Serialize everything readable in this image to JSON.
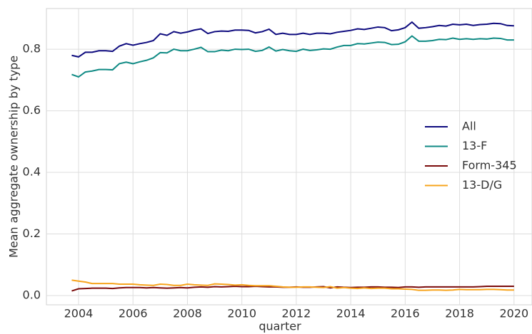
{
  "chart_data": {
    "type": "line",
    "xlabel": "quarter",
    "ylabel": "Mean aggregate ownership by type",
    "x": [
      2003.75,
      2004,
      2004.25,
      2004.5,
      2004.75,
      2005,
      2005.25,
      2005.5,
      2005.75,
      2006,
      2006.25,
      2006.5,
      2006.75,
      2007,
      2007.25,
      2007.5,
      2007.75,
      2008,
      2008.25,
      2008.5,
      2008.75,
      2009,
      2009.25,
      2009.5,
      2009.75,
      2010,
      2010.25,
      2010.5,
      2010.75,
      2011,
      2011.25,
      2011.5,
      2011.75,
      2012,
      2012.25,
      2012.5,
      2012.75,
      2013,
      2013.25,
      2013.5,
      2013.75,
      2014,
      2014.25,
      2014.5,
      2014.75,
      2015,
      2015.25,
      2015.5,
      2015.75,
      2016,
      2016.25,
      2016.5,
      2016.75,
      2017,
      2017.25,
      2017.5,
      2017.75,
      2018,
      2018.25,
      2018.5,
      2018.75,
      2019,
      2019.25,
      2019.5,
      2019.75,
      2020
    ],
    "series": [
      {
        "name": "All",
        "color": "#0d0a7e",
        "values": [
          0.78,
          0.775,
          0.79,
          0.79,
          0.795,
          0.795,
          0.793,
          0.81,
          0.818,
          0.813,
          0.818,
          0.822,
          0.828,
          0.85,
          0.845,
          0.857,
          0.852,
          0.856,
          0.862,
          0.866,
          0.851,
          0.857,
          0.859,
          0.858,
          0.862,
          0.862,
          0.861,
          0.853,
          0.857,
          0.865,
          0.848,
          0.852,
          0.848,
          0.848,
          0.852,
          0.848,
          0.852,
          0.852,
          0.85,
          0.855,
          0.858,
          0.861,
          0.866,
          0.864,
          0.868,
          0.872,
          0.87,
          0.86,
          0.863,
          0.87,
          0.888,
          0.868,
          0.87,
          0.873,
          0.877,
          0.875,
          0.881,
          0.879,
          0.881,
          0.877,
          0.88,
          0.881,
          0.884,
          0.883,
          0.877,
          0.876
        ]
      },
      {
        "name": "13-F",
        "color": "#0f8a84",
        "values": [
          0.718,
          0.71,
          0.726,
          0.729,
          0.734,
          0.734,
          0.733,
          0.753,
          0.758,
          0.753,
          0.759,
          0.764,
          0.772,
          0.789,
          0.788,
          0.8,
          0.795,
          0.795,
          0.8,
          0.806,
          0.792,
          0.792,
          0.797,
          0.795,
          0.8,
          0.799,
          0.8,
          0.793,
          0.796,
          0.807,
          0.794,
          0.799,
          0.795,
          0.793,
          0.8,
          0.796,
          0.798,
          0.801,
          0.8,
          0.807,
          0.812,
          0.812,
          0.818,
          0.817,
          0.82,
          0.823,
          0.822,
          0.815,
          0.816,
          0.824,
          0.843,
          0.826,
          0.826,
          0.828,
          0.832,
          0.831,
          0.836,
          0.832,
          0.834,
          0.832,
          0.834,
          0.833,
          0.836,
          0.835,
          0.83,
          0.83
        ]
      },
      {
        "name": "Form-345",
        "color": "#7b0b0b",
        "values": [
          0.015,
          0.022,
          0.023,
          0.024,
          0.024,
          0.024,
          0.023,
          0.025,
          0.026,
          0.026,
          0.026,
          0.025,
          0.026,
          0.025,
          0.024,
          0.025,
          0.026,
          0.025,
          0.027,
          0.028,
          0.027,
          0.029,
          0.028,
          0.029,
          0.03,
          0.029,
          0.029,
          0.03,
          0.029,
          0.028,
          0.028,
          0.027,
          0.027,
          0.028,
          0.027,
          0.027,
          0.028,
          0.029,
          0.025,
          0.028,
          0.027,
          0.026,
          0.027,
          0.027,
          0.028,
          0.028,
          0.027,
          0.027,
          0.026,
          0.028,
          0.028,
          0.027,
          0.028,
          0.028,
          0.028,
          0.028,
          0.028,
          0.028,
          0.028,
          0.028,
          0.029,
          0.03,
          0.03,
          0.03,
          0.03,
          0.03
        ]
      },
      {
        "name": "13-D/G",
        "color": "#f7a41d",
        "values": [
          0.05,
          0.047,
          0.044,
          0.039,
          0.039,
          0.039,
          0.039,
          0.037,
          0.037,
          0.037,
          0.035,
          0.034,
          0.033,
          0.037,
          0.036,
          0.033,
          0.033,
          0.037,
          0.035,
          0.034,
          0.033,
          0.038,
          0.037,
          0.036,
          0.034,
          0.035,
          0.033,
          0.032,
          0.032,
          0.032,
          0.03,
          0.028,
          0.027,
          0.027,
          0.028,
          0.028,
          0.027,
          0.026,
          0.029,
          0.024,
          0.026,
          0.024,
          0.023,
          0.025,
          0.023,
          0.024,
          0.024,
          0.022,
          0.022,
          0.021,
          0.02,
          0.017,
          0.017,
          0.018,
          0.018,
          0.017,
          0.018,
          0.02,
          0.019,
          0.019,
          0.019,
          0.02,
          0.02,
          0.019,
          0.018,
          0.018
        ]
      }
    ],
    "xlim": [
      2002.82,
      2020.66
    ],
    "xticks": [
      2004,
      2006,
      2008,
      2010,
      2012,
      2014,
      2016,
      2018,
      2020
    ],
    "ylim": [
      -0.03,
      0.932
    ],
    "yticks": [
      {
        "value": 0,
        "label": "0.0"
      },
      0.2,
      0.4,
      0.6,
      0.8
    ],
    "grid": true,
    "legend": "right"
  }
}
